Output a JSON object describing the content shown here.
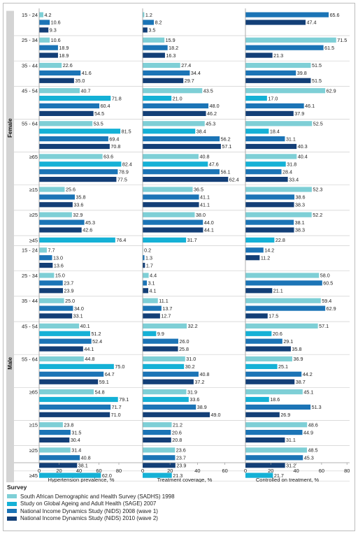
{
  "chart_data": {
    "type": "bar",
    "orientation": "horizontal",
    "groups": [
      {
        "label": "Female",
        "rows": [
          {
            "cat": "15 - 24",
            "values": [
              4.2,
              10.6,
              9.3
            ]
          },
          {
            "cat": "25 - 34",
            "values": [
              10.6,
              18.9,
              18.9
            ]
          },
          {
            "cat": "35 - 44",
            "values": [
              22.6,
              41.6,
              35.0
            ]
          },
          {
            "cat": "45 - 54",
            "values": [
              40.7,
              71.8,
              60.4,
              54.5
            ]
          },
          {
            "cat": "55 - 64",
            "values": [
              53.5,
              81.5,
              69.4,
              70.8
            ]
          },
          {
            "cat": "≥65",
            "values": [
              63.6,
              82.4,
              78.9,
              77.5
            ]
          },
          {
            "cat": "≥15",
            "values": [
              25.6,
              35.8,
              33.6
            ]
          },
          {
            "cat": "≥25",
            "values": [
              32.9,
              45.3,
              42.6
            ]
          },
          {
            "cat": "≥45",
            "values": [
              76.4
            ]
          }
        ]
      },
      {
        "label": "Male",
        "rows": [
          {
            "cat": "15 - 24",
            "values": [
              7.7,
              13.0,
              13.6
            ]
          },
          {
            "cat": "25 - 34",
            "values": [
              15.0,
              23.7,
              23.9
            ]
          },
          {
            "cat": "35 - 44",
            "values": [
              25.0,
              34.0,
              33.1
            ]
          },
          {
            "cat": "45 - 54",
            "values": [
              40.1,
              51.2,
              52.4,
              44.1
            ]
          },
          {
            "cat": "55 - 64",
            "values": [
              44.8,
              75.0,
              64.7,
              59.1
            ]
          },
          {
            "cat": "≥65",
            "values": [
              54.8,
              79.1,
              71.7,
              71.0
            ]
          },
          {
            "cat": "≥15",
            "values": [
              23.8,
              31.5,
              30.4
            ]
          },
          {
            "cat": "≥25",
            "values": [
              31.4,
              40.8,
              38.1
            ]
          },
          {
            "cat": "≥45",
            "values": [
              62.0
            ]
          }
        ]
      },
      {
        "label": "Both",
        "rows": [
          {
            "cat": "≥15",
            "values": [
              24.8,
              33.9,
              32.1
            ]
          },
          {
            "cat": "≥25",
            "values": [
              32.3,
              43.4,
              40.6
            ]
          },
          {
            "cat": "≥45",
            "values": [
              69.8
            ]
          }
        ]
      }
    ],
    "panels": [
      {
        "xlabel": "Hypertension prevalence, %",
        "xlim": [
          0,
          90
        ],
        "ticks": [
          0,
          20,
          40,
          60,
          80
        ]
      },
      {
        "xlabel": "Treatment coverage, %",
        "xlim": [
          0,
          75
        ],
        "ticks": [
          0,
          20,
          40,
          60
        ]
      },
      {
        "xlabel": "Controlled on treatment, %",
        "xlim": [
          0,
          80
        ],
        "ticks": [
          0,
          20,
          40,
          60,
          80
        ]
      }
    ],
    "series": [
      {
        "name": "South African Demographic and Health Survey (SADHS) 1998",
        "color": "#7ecfd6"
      },
      {
        "name": "Study on Global Ageing and Adult Health (SAGE) 2007",
        "color": "#15b1d6"
      },
      {
        "name": "National Income Dynamics Study (NiDS) 2008 (wave 1)",
        "color": "#1b74b6"
      },
      {
        "name": "National Income Dynamics Study (NiDS) 2010 (wave 2)",
        "color": "#133f77"
      }
    ],
    "legend_title": "Survey",
    "legend_position": "bottom-left"
  },
  "treatment": [
    [
      1.2,
      8.2,
      3.5
    ],
    [
      15.9,
      18.2,
      16.3
    ],
    [
      27.4,
      34.4,
      29.7
    ],
    [
      43.5,
      21.0,
      48.0,
      46.2
    ],
    [
      45.3,
      38.4,
      56.2,
      57.1
    ],
    [
      40.8,
      47.6,
      56.1,
      62.4
    ],
    [
      36.5,
      41.1,
      41.1
    ],
    [
      38.0,
      44.0,
      44.1
    ],
    [
      31.7
    ],
    [
      0.2,
      1.3,
      1.7
    ],
    [
      4.4,
      3.1,
      4.1
    ],
    [
      11.1,
      13.7,
      12.7
    ],
    [
      32.2,
      9.9,
      26.0,
      25.8
    ],
    [
      31.0,
      30.2,
      40.8,
      37.2
    ],
    [
      31.9,
      33.6,
      38.9,
      49.0
    ],
    [
      21.2,
      20.6,
      20.8
    ],
    [
      23.6,
      23.7,
      23.9
    ],
    [
      21.3
    ],
    [
      30.5,
      32.9,
      32.3
    ],
    [
      32.6,
      36.2,
      35.7
    ],
    [
      27.5
    ]
  ],
  "controlled": [
    [
      65.6,
      47.4
    ],
    [
      71.5,
      61.5,
      21.3
    ],
    [
      51.5,
      39.8,
      51.5
    ],
    [
      62.9,
      17.0,
      46.1,
      37.9
    ],
    [
      52.5,
      18.4,
      31.1,
      40.3
    ],
    [
      40.4,
      31.8,
      28.4,
      33.4
    ],
    [
      52.3,
      38.6,
      38.3
    ],
    [
      52.2,
      38.1,
      38.3
    ],
    [
      22.8
    ],
    [
      14.2,
      11.2
    ],
    [
      58.0,
      60.5,
      21.1
    ],
    [
      59.4,
      62.9,
      17.5
    ],
    [
      57.1,
      20.6,
      29.1,
      35.8
    ],
    [
      36.9,
      25.1,
      44.2,
      38.7
    ],
    [
      45.1,
      18.6,
      51.3,
      26.9
    ],
    [
      48.6,
      44.9,
      31.1
    ],
    [
      48.5,
      45.3,
      31.2
    ],
    [
      21.7
    ],
    [
      51.3,
      40.2,
      36.4
    ],
    [
      51.2,
      39.9,
      36.4
    ],
    [
      22.5
    ]
  ],
  "series_idx": [
    [
      0,
      2,
      3
    ],
    [
      0,
      2,
      3
    ],
    [
      0,
      2,
      3
    ],
    [
      0,
      1,
      2,
      3
    ],
    [
      0,
      1,
      2,
      3
    ],
    [
      0,
      1,
      2,
      3
    ],
    [
      0,
      2,
      3
    ],
    [
      0,
      2,
      3
    ],
    [
      1
    ],
    [
      0,
      2,
      3
    ],
    [
      0,
      2,
      3
    ],
    [
      0,
      2,
      3
    ],
    [
      0,
      1,
      2,
      3
    ],
    [
      0,
      1,
      2,
      3
    ],
    [
      0,
      1,
      2,
      3
    ],
    [
      0,
      2,
      3
    ],
    [
      0,
      2,
      3
    ],
    [
      1
    ],
    [
      0,
      2,
      3
    ],
    [
      0,
      2,
      3
    ],
    [
      1
    ]
  ],
  "controlled_series_idx": [
    [
      2,
      3
    ],
    [
      0,
      2,
      3
    ],
    [
      0,
      2,
      3
    ],
    [
      0,
      1,
      2,
      3
    ],
    [
      0,
      1,
      2,
      3
    ],
    [
      0,
      1,
      2,
      3
    ],
    [
      0,
      2,
      3
    ],
    [
      0,
      2,
      3
    ],
    [
      1
    ],
    [
      2,
      3
    ],
    [
      0,
      2,
      3
    ],
    [
      0,
      2,
      3
    ],
    [
      0,
      1,
      2,
      3
    ],
    [
      0,
      1,
      2,
      3
    ],
    [
      0,
      1,
      2,
      3
    ],
    [
      0,
      2,
      3
    ],
    [
      0,
      2,
      3
    ],
    [
      1
    ],
    [
      0,
      2,
      3
    ],
    [
      0,
      2,
      3
    ],
    [
      1
    ]
  ]
}
